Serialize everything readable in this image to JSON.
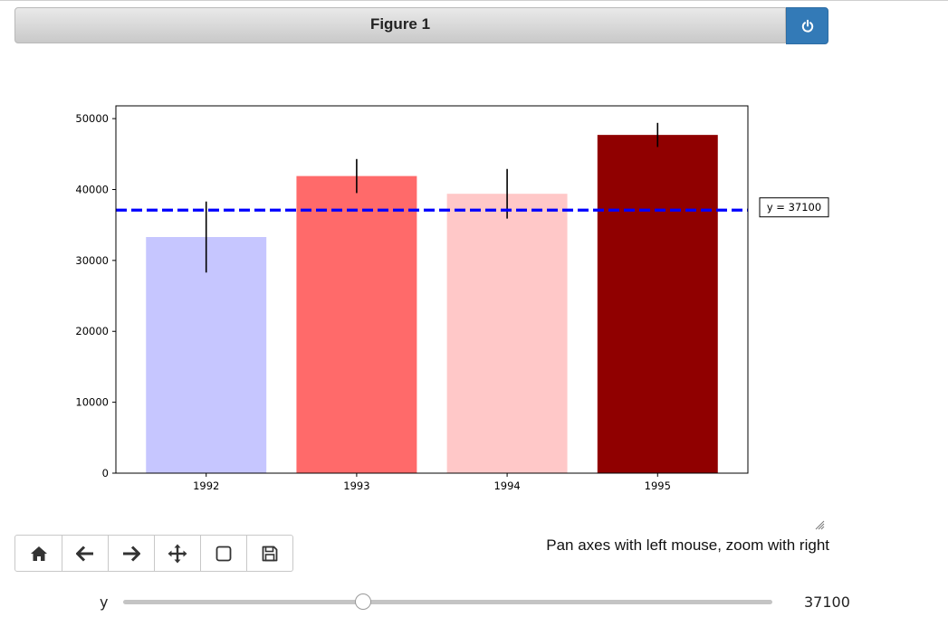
{
  "window": {
    "title": "Figure 1"
  },
  "chart_data": {
    "type": "bar",
    "categories": [
      "1992",
      "1993",
      "1994",
      "1995"
    ],
    "values": [
      33300,
      41900,
      39400,
      47700
    ],
    "errors": [
      5000,
      2400,
      3500,
      1700
    ],
    "colors": [
      "#c6c6ff",
      "#ff6a6a",
      "#ffc8c8",
      "#900000"
    ],
    "ylim": [
      0,
      51800
    ],
    "yticks": [
      0,
      10000,
      20000,
      30000,
      40000,
      50000
    ],
    "title": "",
    "xlabel": "",
    "ylabel": "",
    "hline": {
      "value": 37100,
      "color": "#0000ff",
      "style": "dashed",
      "label": "y = 37100"
    }
  },
  "toolbar": {
    "buttons": [
      {
        "name": "home",
        "icon": "home-icon"
      },
      {
        "name": "back",
        "icon": "arrow-left-icon"
      },
      {
        "name": "forward",
        "icon": "arrow-right-icon"
      },
      {
        "name": "pan",
        "icon": "move-icon"
      },
      {
        "name": "zoom",
        "icon": "square-icon"
      },
      {
        "name": "save",
        "icon": "floppy-disk-icon"
      }
    ],
    "message": "Pan axes with left mouse, zoom with right"
  },
  "slider": {
    "label": "y",
    "value": "37100",
    "fraction": 0.37
  }
}
